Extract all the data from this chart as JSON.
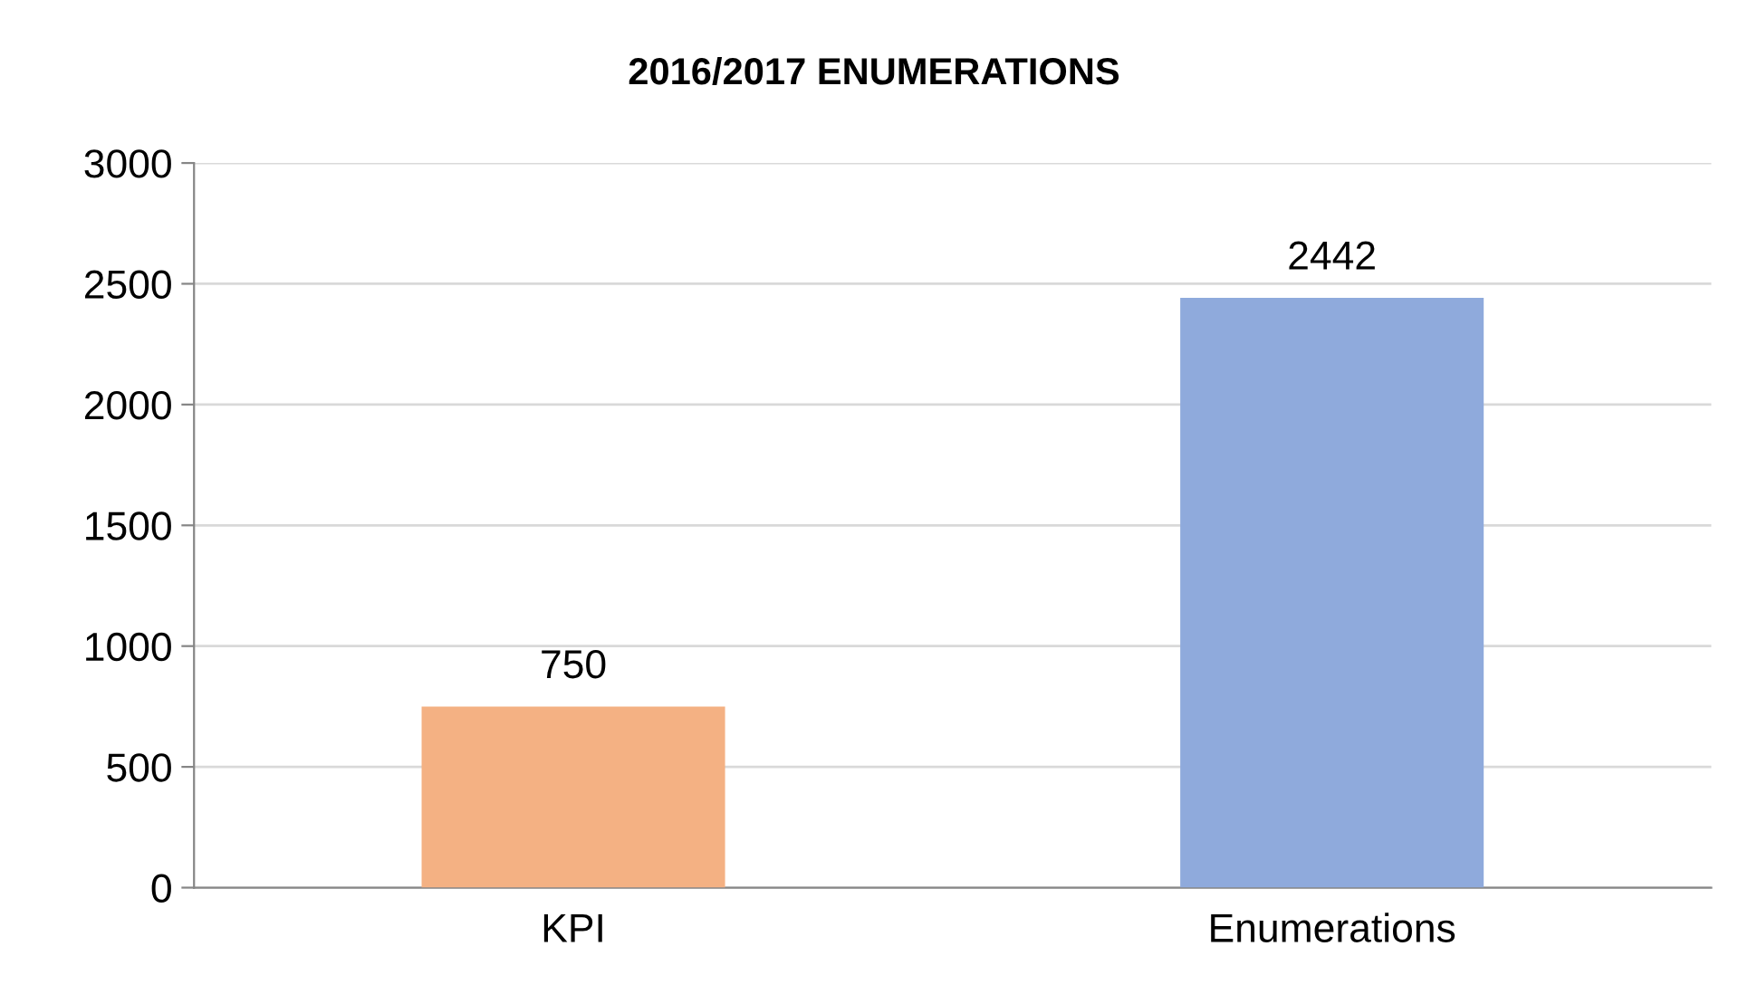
{
  "chart_data": {
    "type": "bar",
    "title": "2016/2017 ENUMERATIONS",
    "categories": [
      "KPI",
      "Enumerations"
    ],
    "values": [
      750,
      2442
    ],
    "colors": [
      "#f4b183",
      "#8faadc"
    ],
    "ylim": [
      0,
      3000
    ],
    "yticks": [
      0,
      500,
      1000,
      1500,
      2000,
      2500,
      3000
    ],
    "grid": "y",
    "data_labels": true
  }
}
